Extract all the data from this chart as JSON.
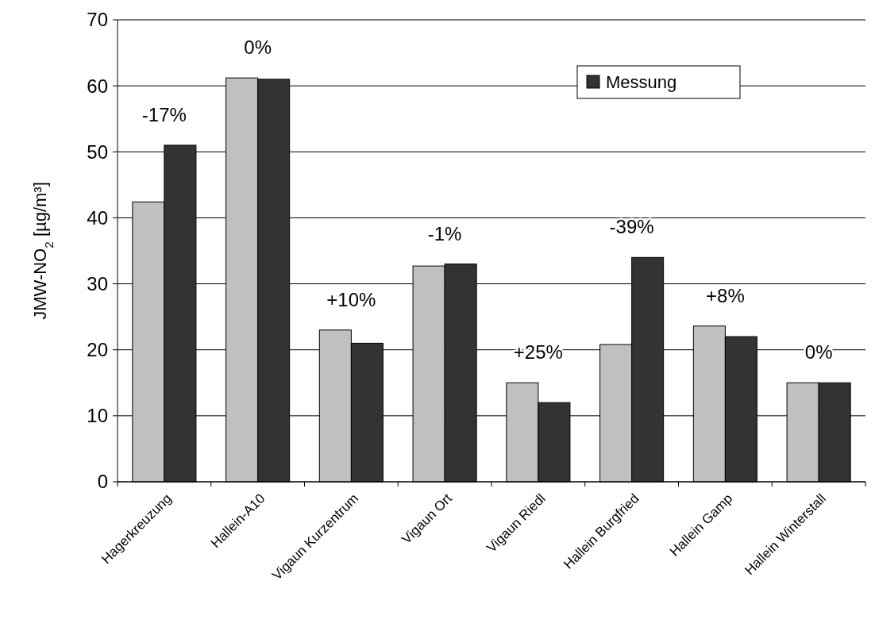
{
  "chart_data": {
    "type": "bar",
    "ylabel": "JMW-NO$_{2}$ [µg/m³]",
    "categories": [
      "Hagerkreuzung",
      "Hallein-A10",
      "Vigaun Kurzentrum",
      "Vigaun Ort",
      "Vigaun Riedl",
      "Hallein Burgfried",
      "Hallein Gamp",
      "Hallein Winterstall"
    ],
    "series": [
      {
        "color": "#c0c0c0",
        "values": [
          42.4,
          61.2,
          23,
          32.7,
          15,
          20.8,
          23.6,
          15
        ]
      },
      {
        "name": "Messung",
        "color": "#333333",
        "values": [
          51,
          61,
          21,
          33,
          12,
          34,
          22,
          15
        ]
      }
    ],
    "ylim": [
      0,
      70
    ],
    "yticks": [
      0,
      10,
      20,
      30,
      40,
      50,
      60,
      70
    ],
    "grid": "y",
    "legend": "top right",
    "annotations": [
      "-17%",
      "0%",
      "+10%",
      "-1%",
      "+25%",
      "-39%",
      "+8%",
      "0%"
    ]
  }
}
